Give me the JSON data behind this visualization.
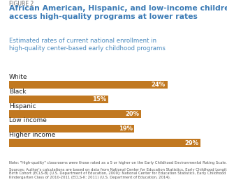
{
  "figure_label": "FIGURE 2",
  "title": "African American, Hispanic, and low-income children\naccess high-quality programs at lower rates",
  "subtitle": "Estimated rates of current national enrollment in\nhigh-quality center-based early childhood programs",
  "categories": [
    "White",
    "Black",
    "Hispanic",
    "Low income",
    "Higher income"
  ],
  "values": [
    24,
    15,
    20,
    19,
    29
  ],
  "bar_color": "#C17820",
  "label_color": "#FFFFFF",
  "title_color": "#3A7AB5",
  "figure_label_color": "#666666",
  "subtitle_color": "#4A8ABF",
  "category_color": "#222222",
  "note_text_1": "Note: \"High-quality\" classrooms were those rated as a 5 or higher on the Early Childhood Environmental Rating Scale.",
  "note_text_2": "Sources: Author's calculations are based on data from National Center for Education Statistics, Early Childhood Longitudinal Study-\nBirth Cohort (ECLS-B) (U.S. Department of Education, 2009); National Center for Education Statistics, Early Childhood Longitudinal Study-\nKindergarten Class of 2010-2011 (ECLS-K: 2011) (U.S. Department of Education, 2014).",
  "background_color": "#FFFFFF",
  "max_val": 32,
  "bar_height": 0.55
}
